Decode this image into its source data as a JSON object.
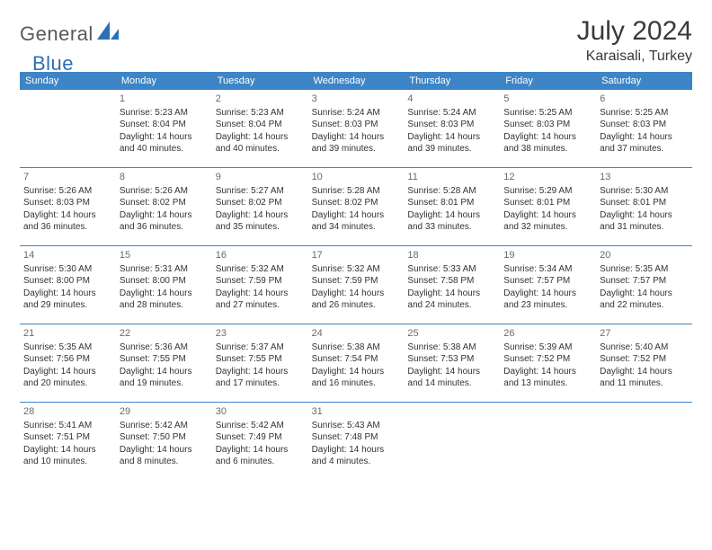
{
  "brand": {
    "text_general": "General",
    "text_blue": "Blue"
  },
  "header": {
    "month_title": "July 2024",
    "location": "Karaisali, Turkey"
  },
  "colors": {
    "header_bg": "#3d85c6",
    "header_text": "#ffffff",
    "divider": "#3d85c6",
    "body_text": "#333333",
    "daynum": "#6a6a6a",
    "title": "#3a3a3a",
    "logo_gray": "#5a5a5a",
    "logo_blue": "#2d6fb8",
    "background": "#ffffff"
  },
  "calendar": {
    "weekdays": [
      "Sunday",
      "Monday",
      "Tuesday",
      "Wednesday",
      "Thursday",
      "Friday",
      "Saturday"
    ],
    "fontsize_weekday": 11,
    "fontsize_daynum": 11,
    "fontsize_body": 10,
    "weeks": [
      [
        null,
        {
          "n": "1",
          "sunrise": "5:23 AM",
          "sunset": "8:04 PM",
          "daylight": "14 hours and 40 minutes."
        },
        {
          "n": "2",
          "sunrise": "5:23 AM",
          "sunset": "8:04 PM",
          "daylight": "14 hours and 40 minutes."
        },
        {
          "n": "3",
          "sunrise": "5:24 AM",
          "sunset": "8:03 PM",
          "daylight": "14 hours and 39 minutes."
        },
        {
          "n": "4",
          "sunrise": "5:24 AM",
          "sunset": "8:03 PM",
          "daylight": "14 hours and 39 minutes."
        },
        {
          "n": "5",
          "sunrise": "5:25 AM",
          "sunset": "8:03 PM",
          "daylight": "14 hours and 38 minutes."
        },
        {
          "n": "6",
          "sunrise": "5:25 AM",
          "sunset": "8:03 PM",
          "daylight": "14 hours and 37 minutes."
        }
      ],
      [
        {
          "n": "7",
          "sunrise": "5:26 AM",
          "sunset": "8:03 PM",
          "daylight": "14 hours and 36 minutes."
        },
        {
          "n": "8",
          "sunrise": "5:26 AM",
          "sunset": "8:02 PM",
          "daylight": "14 hours and 36 minutes."
        },
        {
          "n": "9",
          "sunrise": "5:27 AM",
          "sunset": "8:02 PM",
          "daylight": "14 hours and 35 minutes."
        },
        {
          "n": "10",
          "sunrise": "5:28 AM",
          "sunset": "8:02 PM",
          "daylight": "14 hours and 34 minutes."
        },
        {
          "n": "11",
          "sunrise": "5:28 AM",
          "sunset": "8:01 PM",
          "daylight": "14 hours and 33 minutes."
        },
        {
          "n": "12",
          "sunrise": "5:29 AM",
          "sunset": "8:01 PM",
          "daylight": "14 hours and 32 minutes."
        },
        {
          "n": "13",
          "sunrise": "5:30 AM",
          "sunset": "8:01 PM",
          "daylight": "14 hours and 31 minutes."
        }
      ],
      [
        {
          "n": "14",
          "sunrise": "5:30 AM",
          "sunset": "8:00 PM",
          "daylight": "14 hours and 29 minutes."
        },
        {
          "n": "15",
          "sunrise": "5:31 AM",
          "sunset": "8:00 PM",
          "daylight": "14 hours and 28 minutes."
        },
        {
          "n": "16",
          "sunrise": "5:32 AM",
          "sunset": "7:59 PM",
          "daylight": "14 hours and 27 minutes."
        },
        {
          "n": "17",
          "sunrise": "5:32 AM",
          "sunset": "7:59 PM",
          "daylight": "14 hours and 26 minutes."
        },
        {
          "n": "18",
          "sunrise": "5:33 AM",
          "sunset": "7:58 PM",
          "daylight": "14 hours and 24 minutes."
        },
        {
          "n": "19",
          "sunrise": "5:34 AM",
          "sunset": "7:57 PM",
          "daylight": "14 hours and 23 minutes."
        },
        {
          "n": "20",
          "sunrise": "5:35 AM",
          "sunset": "7:57 PM",
          "daylight": "14 hours and 22 minutes."
        }
      ],
      [
        {
          "n": "21",
          "sunrise": "5:35 AM",
          "sunset": "7:56 PM",
          "daylight": "14 hours and 20 minutes."
        },
        {
          "n": "22",
          "sunrise": "5:36 AM",
          "sunset": "7:55 PM",
          "daylight": "14 hours and 19 minutes."
        },
        {
          "n": "23",
          "sunrise": "5:37 AM",
          "sunset": "7:55 PM",
          "daylight": "14 hours and 17 minutes."
        },
        {
          "n": "24",
          "sunrise": "5:38 AM",
          "sunset": "7:54 PM",
          "daylight": "14 hours and 16 minutes."
        },
        {
          "n": "25",
          "sunrise": "5:38 AM",
          "sunset": "7:53 PM",
          "daylight": "14 hours and 14 minutes."
        },
        {
          "n": "26",
          "sunrise": "5:39 AM",
          "sunset": "7:52 PM",
          "daylight": "14 hours and 13 minutes."
        },
        {
          "n": "27",
          "sunrise": "5:40 AM",
          "sunset": "7:52 PM",
          "daylight": "14 hours and 11 minutes."
        }
      ],
      [
        {
          "n": "28",
          "sunrise": "5:41 AM",
          "sunset": "7:51 PM",
          "daylight": "14 hours and 10 minutes."
        },
        {
          "n": "29",
          "sunrise": "5:42 AM",
          "sunset": "7:50 PM",
          "daylight": "14 hours and 8 minutes."
        },
        {
          "n": "30",
          "sunrise": "5:42 AM",
          "sunset": "7:49 PM",
          "daylight": "14 hours and 6 minutes."
        },
        {
          "n": "31",
          "sunrise": "5:43 AM",
          "sunset": "7:48 PM",
          "daylight": "14 hours and 4 minutes."
        },
        null,
        null,
        null
      ]
    ],
    "labels": {
      "sunrise_prefix": "Sunrise: ",
      "sunset_prefix": "Sunset: ",
      "daylight_prefix": "Daylight: "
    }
  }
}
